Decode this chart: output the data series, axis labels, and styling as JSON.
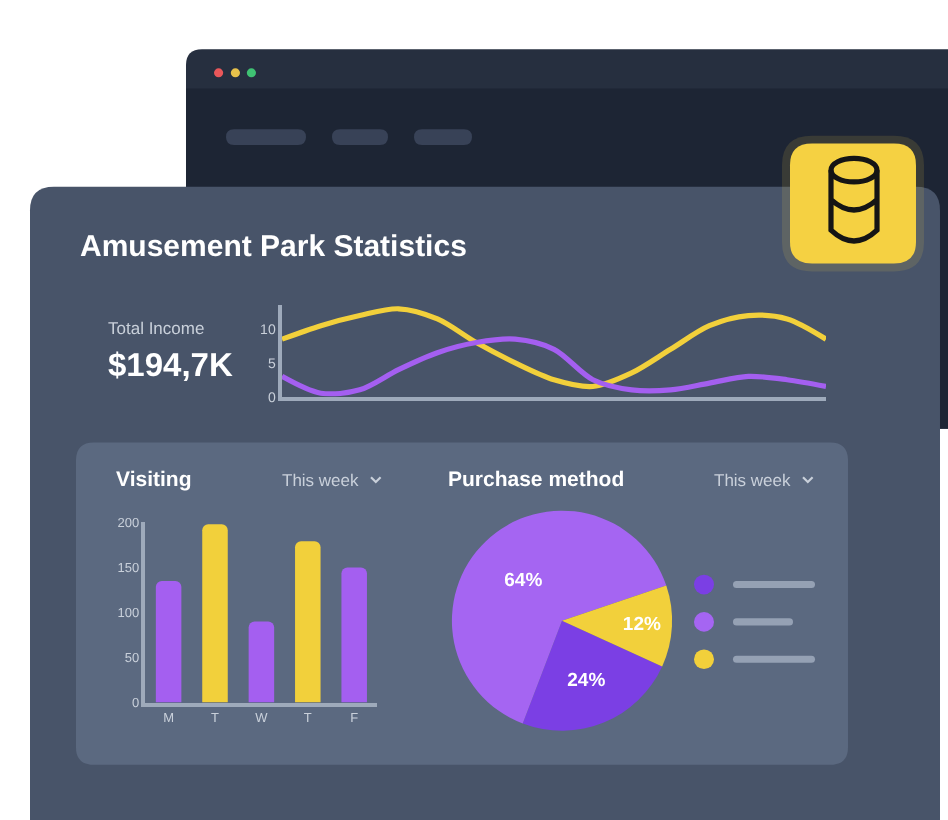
{
  "chart_data": [
    {
      "type": "other",
      "title": "Amusement Park Statistics",
      "annotations": [
        "Total Income",
        "$194,7K"
      ]
    },
    {
      "type": "line",
      "categories": [
        null,
        null,
        null,
        null,
        null,
        null,
        null,
        null,
        null,
        null,
        null,
        null,
        null,
        null,
        null
      ],
      "series": [
        {
          "color": "#f2d03b",
          "values": [
            8.5,
            10.5,
            12,
            13,
            11.5,
            8,
            5,
            2.5,
            1.5,
            3.5,
            7,
            10.5,
            12,
            11.5,
            8.5
          ]
        },
        {
          "color": "#a45ff0",
          "values": [
            3,
            0.5,
            1,
            4,
            6.5,
            8,
            8.5,
            7,
            2.5,
            1,
            1,
            2,
            3,
            2.5,
            1.5
          ]
        }
      ],
      "ylim": [
        0,
        13.5
      ],
      "yticks": [
        0,
        5,
        10
      ],
      "tick_labels": "y"
    },
    {
      "type": "bar",
      "title": "Visiting",
      "annotations": [
        "This week"
      ],
      "categories": [
        "M",
        "T",
        "W",
        "T",
        "F"
      ],
      "values": [
        135,
        198,
        90,
        179,
        150
      ],
      "colors": [
        "#a45ff0",
        "#f2d03b",
        "#a45ff0",
        "#f2d03b",
        "#a45ff0"
      ],
      "ylim": [
        0,
        200
      ],
      "yticks": [
        0,
        50,
        100,
        150,
        200
      ]
    },
    {
      "type": "pie",
      "title": "Purchase method",
      "annotations": [
        "This week"
      ],
      "categories": [
        null,
        null,
        null
      ],
      "values": [
        24,
        64,
        12
      ],
      "colors": [
        "#7b3fe4",
        "#a565f2",
        "#f2d03b"
      ],
      "value_labels": [
        "24%",
        "64%",
        "12%"
      ]
    }
  ]
}
